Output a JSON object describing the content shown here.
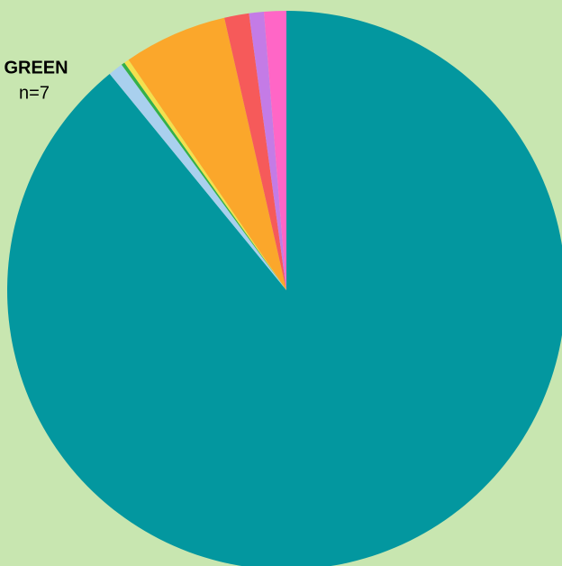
{
  "chart_data": {
    "type": "pie",
    "categories": [
      null,
      null,
      "GREEN",
      null,
      null,
      null,
      null,
      null
    ],
    "values": [
      3120,
      30,
      7,
      10,
      210,
      50,
      30,
      45
    ],
    "value_labels": [
      null,
      null,
      "n=7",
      null,
      null,
      null,
      null,
      null
    ],
    "colors": [
      "#03979f",
      "#a9d0ee",
      "#34b04a",
      "#f3e04e",
      "#fba72b",
      "#f65a5a",
      "#c47be6",
      "#ff66c6"
    ]
  }
}
